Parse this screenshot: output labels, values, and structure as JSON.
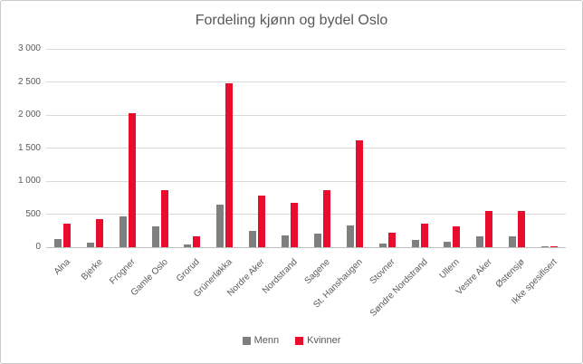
{
  "chart": {
    "title": "Fordeling kjønn og bydel Oslo"
  },
  "colors": {
    "menn": "#7f7f7f",
    "kvinner": "#e80d2d",
    "gridline": "#d9d9d9",
    "axis_line": "#bfbfbf",
    "text": "#595959",
    "border": "#c9c9c9",
    "background": "#ffffff"
  },
  "chart_data": {
    "type": "bar",
    "title": "Fordeling kjønn og bydel Oslo",
    "xlabel": "",
    "ylabel": "",
    "categories": [
      "Alna",
      "Bjerke",
      "Frogner",
      "Gamle Oslo",
      "Grorud",
      "Grünerløkka",
      "Nordre Aker",
      "Nordstrand",
      "Sagene",
      "St. Hanshaugen",
      "Stovner",
      "Søndre Nordstrand",
      "Ullern",
      "Vestre Aker",
      "Østensjø",
      "Ikke spesifisert"
    ],
    "series": [
      {
        "name": "Menn",
        "color": "#7f7f7f",
        "values": [
          120,
          70,
          470,
          310,
          45,
          640,
          240,
          180,
          210,
          330,
          55,
          110,
          85,
          170,
          160,
          5
        ]
      },
      {
        "name": "Kvinner",
        "color": "#e80d2d",
        "values": [
          360,
          420,
          2030,
          860,
          165,
          2480,
          780,
          670,
          860,
          1620,
          220,
          350,
          310,
          545,
          545,
          20
        ]
      }
    ],
    "ylim": [
      0,
      3000
    ],
    "ytick_step": 500,
    "ytick_labels_bottom_to_top": [
      "0",
      "500",
      "1 000",
      "1 500",
      "2 000",
      "2 500",
      "3 000"
    ],
    "grid": true,
    "legend_position": "bottom"
  }
}
